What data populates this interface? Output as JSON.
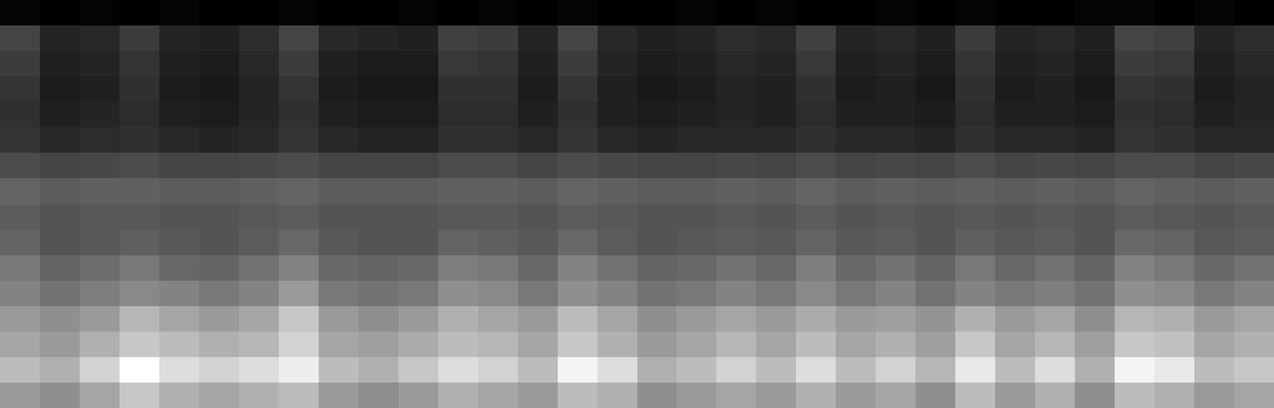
{
  "chart_data": {
    "type": "heatmap",
    "tick_labels": false,
    "cells": [
      [
        6,
        5,
        6,
        5,
        6,
        5,
        5,
        6,
        5,
        5,
        6,
        5,
        6,
        5,
        6,
        5,
        5,
        6,
        5,
        6,
        5,
        5,
        6,
        5,
        6,
        5,
        5,
        6,
        6,
        5,
        6,
        5
      ],
      [
        22,
        14,
        15,
        20,
        14,
        13,
        16,
        22,
        15,
        14,
        13,
        21,
        20,
        14,
        22,
        15,
        13,
        14,
        16,
        15,
        21,
        14,
        15,
        13,
        20,
        14,
        15,
        13,
        22,
        21,
        14,
        16
      ],
      [
        20,
        13,
        14,
        18,
        13,
        12,
        15,
        20,
        13,
        12,
        12,
        19,
        18,
        13,
        20,
        14,
        12,
        13,
        15,
        14,
        19,
        13,
        14,
        12,
        18,
        13,
        14,
        12,
        20,
        19,
        13,
        15
      ],
      [
        18,
        12,
        13,
        17,
        12,
        11,
        14,
        18,
        12,
        11,
        11,
        17,
        17,
        12,
        18,
        13,
        11,
        12,
        14,
        13,
        17,
        12,
        13,
        11,
        17,
        12,
        13,
        11,
        18,
        17,
        12,
        14
      ],
      [
        17,
        13,
        14,
        16,
        13,
        12,
        14,
        17,
        13,
        12,
        12,
        16,
        16,
        13,
        17,
        13,
        12,
        13,
        14,
        13,
        16,
        13,
        13,
        12,
        16,
        13,
        13,
        12,
        17,
        16,
        13,
        14
      ],
      [
        18,
        15,
        16,
        17,
        15,
        14,
        15,
        18,
        15,
        14,
        14,
        17,
        17,
        15,
        18,
        15,
        14,
        15,
        15,
        15,
        17,
        15,
        15,
        14,
        17,
        15,
        15,
        14,
        18,
        17,
        15,
        15
      ],
      [
        24,
        22,
        23,
        24,
        22,
        22,
        23,
        24,
        22,
        22,
        22,
        24,
        24,
        22,
        24,
        23,
        22,
        22,
        23,
        22,
        24,
        22,
        23,
        22,
        24,
        22,
        23,
        22,
        24,
        24,
        22,
        23
      ],
      [
        30,
        28,
        29,
        29,
        28,
        28,
        29,
        30,
        28,
        28,
        28,
        29,
        29,
        28,
        30,
        29,
        28,
        28,
        29,
        28,
        30,
        28,
        29,
        28,
        29,
        28,
        29,
        28,
        30,
        29,
        28,
        29
      ],
      [
        28,
        26,
        27,
        27,
        26,
        26,
        27,
        28,
        26,
        26,
        26,
        27,
        27,
        26,
        28,
        27,
        26,
        26,
        27,
        26,
        28,
        26,
        27,
        26,
        27,
        26,
        27,
        26,
        28,
        27,
        26,
        27
      ],
      [
        30,
        26,
        27,
        29,
        27,
        26,
        28,
        31,
        27,
        26,
        26,
        30,
        29,
        27,
        31,
        28,
        26,
        27,
        28,
        27,
        30,
        27,
        28,
        26,
        29,
        27,
        28,
        26,
        31,
        30,
        27,
        28
      ],
      [
        34,
        30,
        32,
        34,
        31,
        30,
        33,
        36,
        31,
        30,
        31,
        35,
        34,
        31,
        36,
        33,
        30,
        31,
        33,
        31,
        35,
        31,
        33,
        30,
        34,
        31,
        33,
        30,
        36,
        34,
        31,
        33
      ],
      [
        36,
        33,
        35,
        37,
        36,
        34,
        36,
        40,
        34,
        33,
        34,
        38,
        37,
        34,
        38,
        36,
        33,
        34,
        36,
        34,
        37,
        34,
        36,
        33,
        36,
        34,
        35,
        33,
        38,
        37,
        34,
        36
      ],
      [
        40,
        38,
        40,
        45,
        42,
        40,
        42,
        48,
        40,
        38,
        40,
        44,
        42,
        40,
        46,
        42,
        38,
        40,
        42,
        40,
        43,
        40,
        41,
        39,
        44,
        40,
        42,
        38,
        45,
        44,
        40,
        42
      ],
      [
        42,
        40,
        44,
        48,
        46,
        44,
        45,
        50,
        42,
        41,
        43,
        46,
        45,
        42,
        48,
        44,
        40,
        42,
        45,
        42,
        46,
        42,
        44,
        41,
        48,
        42,
        45,
        41,
        48,
        47,
        42,
        44
      ],
      [
        46,
        44,
        50,
        58,
        52,
        50,
        52,
        55,
        46,
        44,
        48,
        52,
        50,
        46,
        56,
        52,
        44,
        46,
        50,
        46,
        52,
        46,
        50,
        45,
        54,
        46,
        52,
        44,
        56,
        54,
        46,
        48
      ],
      [
        40,
        38,
        42,
        48,
        44,
        42,
        44,
        46,
        40,
        38,
        40,
        44,
        42,
        40,
        46,
        44,
        38,
        40,
        42,
        40,
        44,
        40,
        42,
        38,
        46,
        40,
        44,
        38,
        46,
        44,
        40,
        42
      ]
    ]
  }
}
